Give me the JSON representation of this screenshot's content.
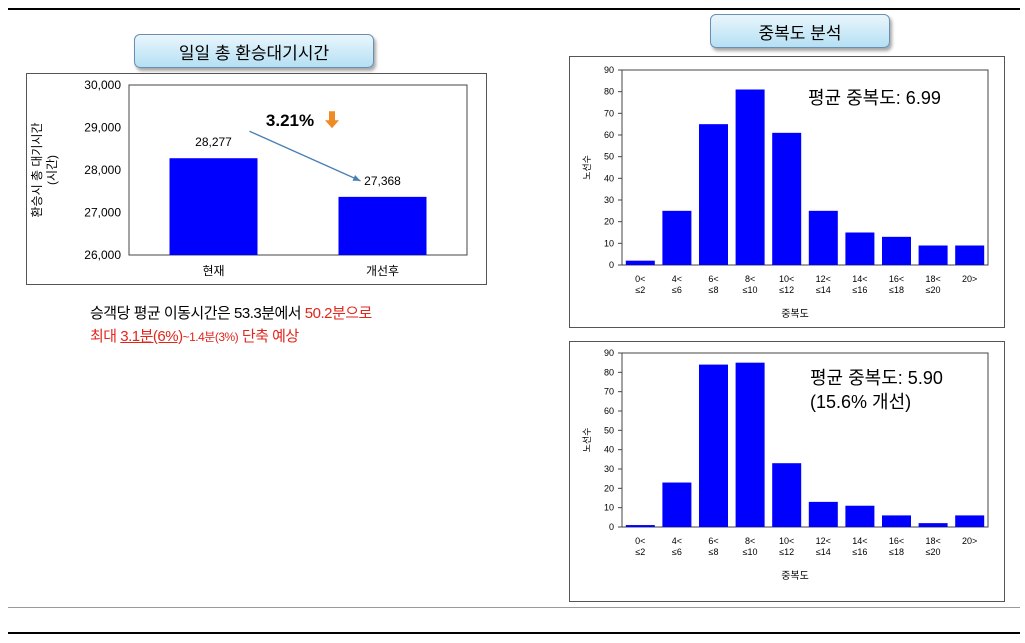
{
  "left_panel": {
    "title": "일일 총 환승대기시간",
    "change_pct": "3.21%",
    "note_line1_black": "승객당 평균 이동시간은 53.3분에서 ",
    "note_line1_red": "50.2분으로",
    "note_line2_a": "최대 ",
    "note_line2_b": "3.1분(6%)",
    "note_line2_c": "~1.4분(3%)",
    "note_line2_d": " 단축 예상"
  },
  "right_panel": {
    "title": "중복도 분석",
    "top_avg_label": "평균 중복도: 6.99",
    "bottom_avg_label": "평균 중복도: 5.90",
    "bottom_improve_label": "(15.6% 개선)"
  },
  "colors": {
    "bar": "#0000ff",
    "arrow": "#4a7fb5",
    "down_arrow": "#f08a24",
    "red_text": "#e1261c"
  },
  "chart_data": [
    {
      "type": "bar",
      "title": "",
      "categories": [
        "현재",
        "개선후"
      ],
      "values": [
        28277,
        27368
      ],
      "value_labels": [
        "28,277",
        "27,368"
      ],
      "ylabel": "환승시 총 대기시간 (시간)",
      "ylim": [
        26000,
        30000
      ],
      "yticks": [
        26000,
        27000,
        28000,
        29000,
        30000
      ],
      "ytick_labels": [
        "26,000",
        "27,000",
        "28,000",
        "29,000",
        "30,000"
      ],
      "grid": false
    },
    {
      "type": "bar",
      "categories": [
        [
          "0<",
          "≤2"
        ],
        [
          "4<",
          "≤6"
        ],
        [
          "6<",
          "≤8"
        ],
        [
          "8<",
          "≤10"
        ],
        [
          "10<",
          "≤12"
        ],
        [
          "12<",
          "≤14"
        ],
        [
          "14<",
          "≤16"
        ],
        [
          "16<",
          "≤18"
        ],
        [
          "18<",
          "≤20"
        ],
        [
          "20>"
        ]
      ],
      "values": [
        2,
        25,
        65,
        81,
        61,
        25,
        15,
        13,
        9,
        9
      ],
      "xlabel": "중복도",
      "ylabel": "노선수",
      "ylim": [
        0,
        90
      ],
      "yticks": [
        0,
        10,
        20,
        30,
        40,
        50,
        60,
        70,
        80,
        90
      ],
      "grid": false
    },
    {
      "type": "bar",
      "categories": [
        [
          "0<",
          "≤2"
        ],
        [
          "4<",
          "≤6"
        ],
        [
          "6<",
          "≤8"
        ],
        [
          "8<",
          "≤10"
        ],
        [
          "10<",
          "≤12"
        ],
        [
          "12<",
          "≤14"
        ],
        [
          "14<",
          "≤16"
        ],
        [
          "16<",
          "≤18"
        ],
        [
          "18<",
          "≤20"
        ],
        [
          "20>"
        ]
      ],
      "values": [
        1,
        23,
        84,
        85,
        33,
        13,
        11,
        6,
        2,
        6
      ],
      "xlabel": "중복도",
      "ylabel": "노선수",
      "ylim": [
        0,
        90
      ],
      "yticks": [
        0,
        10,
        20,
        30,
        40,
        50,
        60,
        70,
        80,
        90
      ],
      "grid": false
    }
  ]
}
